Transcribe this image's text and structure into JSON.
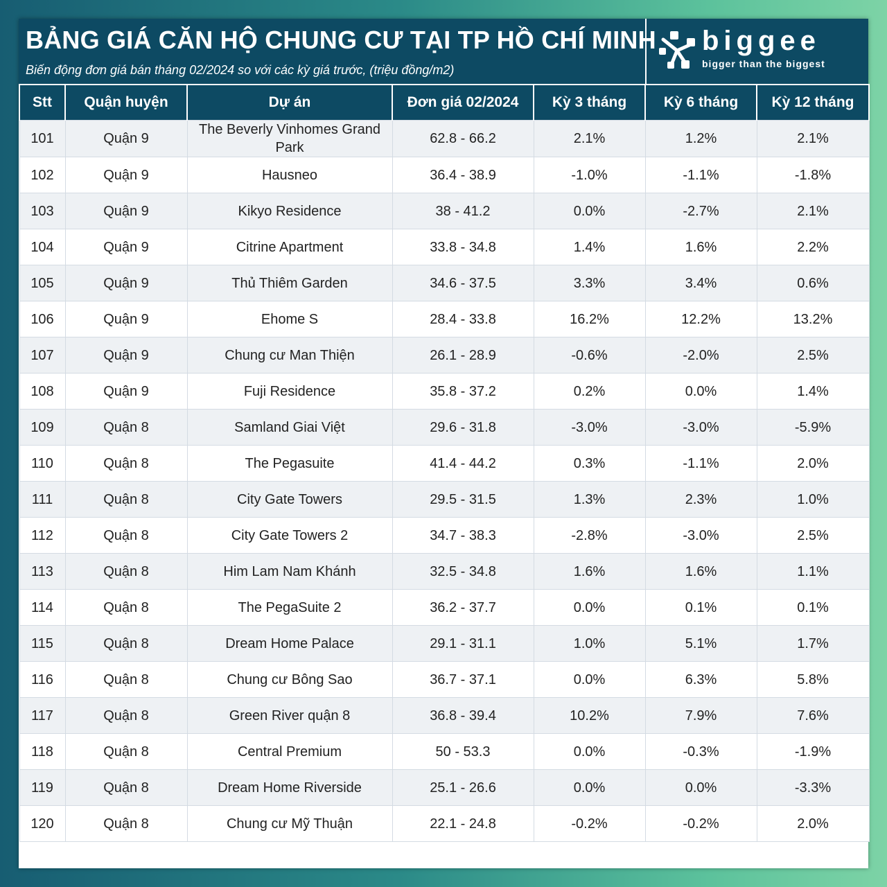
{
  "header": {
    "title": "BẢNG GIÁ CĂN HỘ CHUNG CƯ TẠI TP HỒ CHÍ MINH",
    "subtitle": "Biến động đơn giá bán tháng 02/2024 so với các kỳ giá trước, (triệu đồng/m2)"
  },
  "logo": {
    "name": "biggee",
    "tagline": "bigger than the biggest",
    "icon": "biggee-logo-icon"
  },
  "colors": {
    "header_bg": "#0d4a63",
    "positive": "#1aa34a",
    "negative": "#d0211d",
    "zero": "#8a8a8a"
  },
  "table": {
    "columns": [
      "Stt",
      "Quận huyện",
      "Dự án",
      "Đơn giá 02/2024",
      "Kỳ 3 tháng",
      "Kỳ 6 tháng",
      "Kỳ 12 tháng"
    ],
    "rows": [
      {
        "stt": "101",
        "district": "Quận 9",
        "project": "The Beverly Vinhomes Grand Park",
        "price": "62.8 - 66.2",
        "k3": "2.1%",
        "k6": "1.2%",
        "k12": "2.1%"
      },
      {
        "stt": "102",
        "district": "Quận 9",
        "project": "Hausneo",
        "price": "36.4 - 38.9",
        "k3": "-1.0%",
        "k6": "-1.1%",
        "k12": "-1.8%"
      },
      {
        "stt": "103",
        "district": "Quận 9",
        "project": "Kikyo Residence",
        "price": "38 - 41.2",
        "k3": "0.0%",
        "k6": "-2.7%",
        "k12": "2.1%"
      },
      {
        "stt": "104",
        "district": "Quận 9",
        "project": "Citrine Apartment",
        "price": "33.8 - 34.8",
        "k3": "1.4%",
        "k6": "1.6%",
        "k12": "2.2%"
      },
      {
        "stt": "105",
        "district": "Quận 9",
        "project": "Thủ Thiêm Garden",
        "price": "34.6 - 37.5",
        "k3": "3.3%",
        "k6": "3.4%",
        "k12": "0.6%"
      },
      {
        "stt": "106",
        "district": "Quận 9",
        "project": "Ehome S",
        "price": "28.4 - 33.8",
        "k3": "16.2%",
        "k6": "12.2%",
        "k12": "13.2%"
      },
      {
        "stt": "107",
        "district": "Quận 9",
        "project": "Chung cư Man Thiện",
        "price": "26.1 - 28.9",
        "k3": "-0.6%",
        "k6": "-2.0%",
        "k12": "2.5%"
      },
      {
        "stt": "108",
        "district": "Quận 9",
        "project": "Fuji Residence",
        "price": "35.8 - 37.2",
        "k3": "0.2%",
        "k6": "0.0%",
        "k12": "1.4%"
      },
      {
        "stt": "109",
        "district": "Quận 8",
        "project": "Samland Giai Việt",
        "price": "29.6 - 31.8",
        "k3": "-3.0%",
        "k6": "-3.0%",
        "k12": "-5.9%"
      },
      {
        "stt": "110",
        "district": "Quận 8",
        "project": "The Pegasuite",
        "price": "41.4 - 44.2",
        "k3": "0.3%",
        "k6": "-1.1%",
        "k12": "2.0%"
      },
      {
        "stt": "111",
        "district": "Quận 8",
        "project": "City Gate Towers",
        "price": "29.5 - 31.5",
        "k3": "1.3%",
        "k6": "2.3%",
        "k12": "1.0%"
      },
      {
        "stt": "112",
        "district": "Quận 8",
        "project": "City Gate Towers 2",
        "price": "34.7 - 38.3",
        "k3": "-2.8%",
        "k6": "-3.0%",
        "k12": "2.5%"
      },
      {
        "stt": "113",
        "district": "Quận 8",
        "project": "Him Lam Nam Khánh",
        "price": "32.5 - 34.8",
        "k3": "1.6%",
        "k6": "1.6%",
        "k12": "1.1%"
      },
      {
        "stt": "114",
        "district": "Quận 8",
        "project": "The PegaSuite 2",
        "price": "36.2 - 37.7",
        "k3": "0.0%",
        "k6": "0.1%",
        "k12": "0.1%"
      },
      {
        "stt": "115",
        "district": "Quận 8",
        "project": "Dream Home Palace",
        "price": "29.1 - 31.1",
        "k3": "1.0%",
        "k6": "5.1%",
        "k12": "1.7%"
      },
      {
        "stt": "116",
        "district": "Quận 8",
        "project": "Chung cư Bông Sao",
        "price": "36.7 - 37.1",
        "k3": "0.0%",
        "k6": "6.3%",
        "k12": "5.8%"
      },
      {
        "stt": "117",
        "district": "Quận 8",
        "project": "Green River quận 8",
        "price": "36.8 - 39.4",
        "k3": "10.2%",
        "k6": "7.9%",
        "k12": "7.6%"
      },
      {
        "stt": "118",
        "district": "Quận 8",
        "project": "Central Premium",
        "price": "50 - 53.3",
        "k3": "0.0%",
        "k6": "-0.3%",
        "k12": "-1.9%"
      },
      {
        "stt": "119",
        "district": "Quận 8",
        "project": "Dream Home Riverside",
        "price": "25.1 - 26.6",
        "k3": "0.0%",
        "k6": "0.0%",
        "k12": "-3.3%"
      },
      {
        "stt": "120",
        "district": "Quận 8",
        "project": "Chung cư Mỹ Thuận",
        "price": "22.1 - 24.8",
        "k3": "-0.2%",
        "k6": "-0.2%",
        "k12": "2.0%"
      }
    ]
  }
}
